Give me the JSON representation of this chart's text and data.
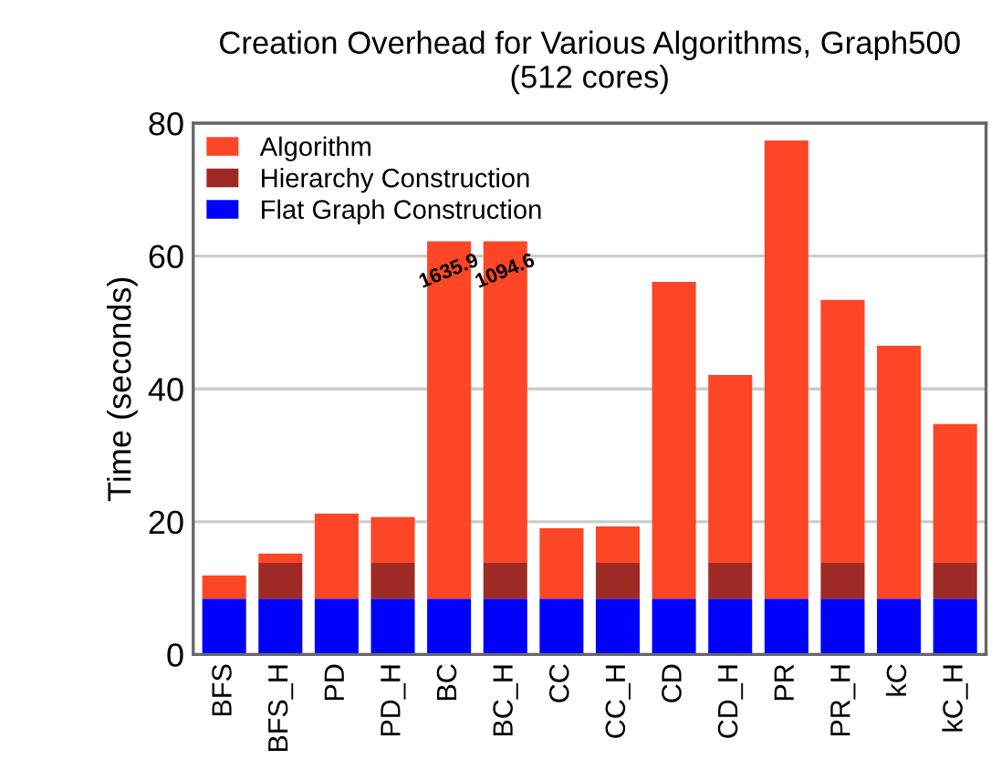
{
  "chart_data": {
    "type": "bar",
    "title": "Creation Overhead for Various Algorithms, Graph500\n(512 cores)",
    "ylabel": "Time (seconds)",
    "categories": [
      "BFS",
      "BFS_H",
      "PD",
      "PD_H",
      "BC",
      "BC_H",
      "CC",
      "CC_H",
      "CD",
      "CD_H",
      "PR",
      "PR_H",
      "kC",
      "kC_H"
    ],
    "stacked": true,
    "series": [
      {
        "name": "Flat Graph Construction",
        "color": "#0000ff",
        "values": [
          8.4,
          8.4,
          8.4,
          8.4,
          8.4,
          8.4,
          8.4,
          8.4,
          8.4,
          8.4,
          8.4,
          8.4,
          8.4,
          8.4
        ]
      },
      {
        "name": "Hierarchy Construction",
        "color": "#9e2a25",
        "values": [
          0,
          5.4,
          0,
          5.4,
          0,
          5.4,
          0,
          5.4,
          0,
          5.4,
          0,
          5.4,
          0,
          5.4
        ]
      },
      {
        "name": "Algorithm",
        "color": "#fc4625",
        "values": [
          3.5,
          1.4,
          12.8,
          6.9,
          53.8,
          48.4,
          10.6,
          5.5,
          47.7,
          28.3,
          69.0,
          39.6,
          38.1,
          20.9
        ]
      }
    ],
    "annotations": [
      {
        "text": "1635.9",
        "x": "BC",
        "y": 62.2
      },
      {
        "text": "1094.6",
        "x": "BC_H",
        "y": 62.2
      }
    ],
    "ylim": [
      0,
      80
    ],
    "yticks": [
      0,
      20,
      40,
      60,
      80
    ],
    "grid": "y",
    "legend": "top left"
  }
}
